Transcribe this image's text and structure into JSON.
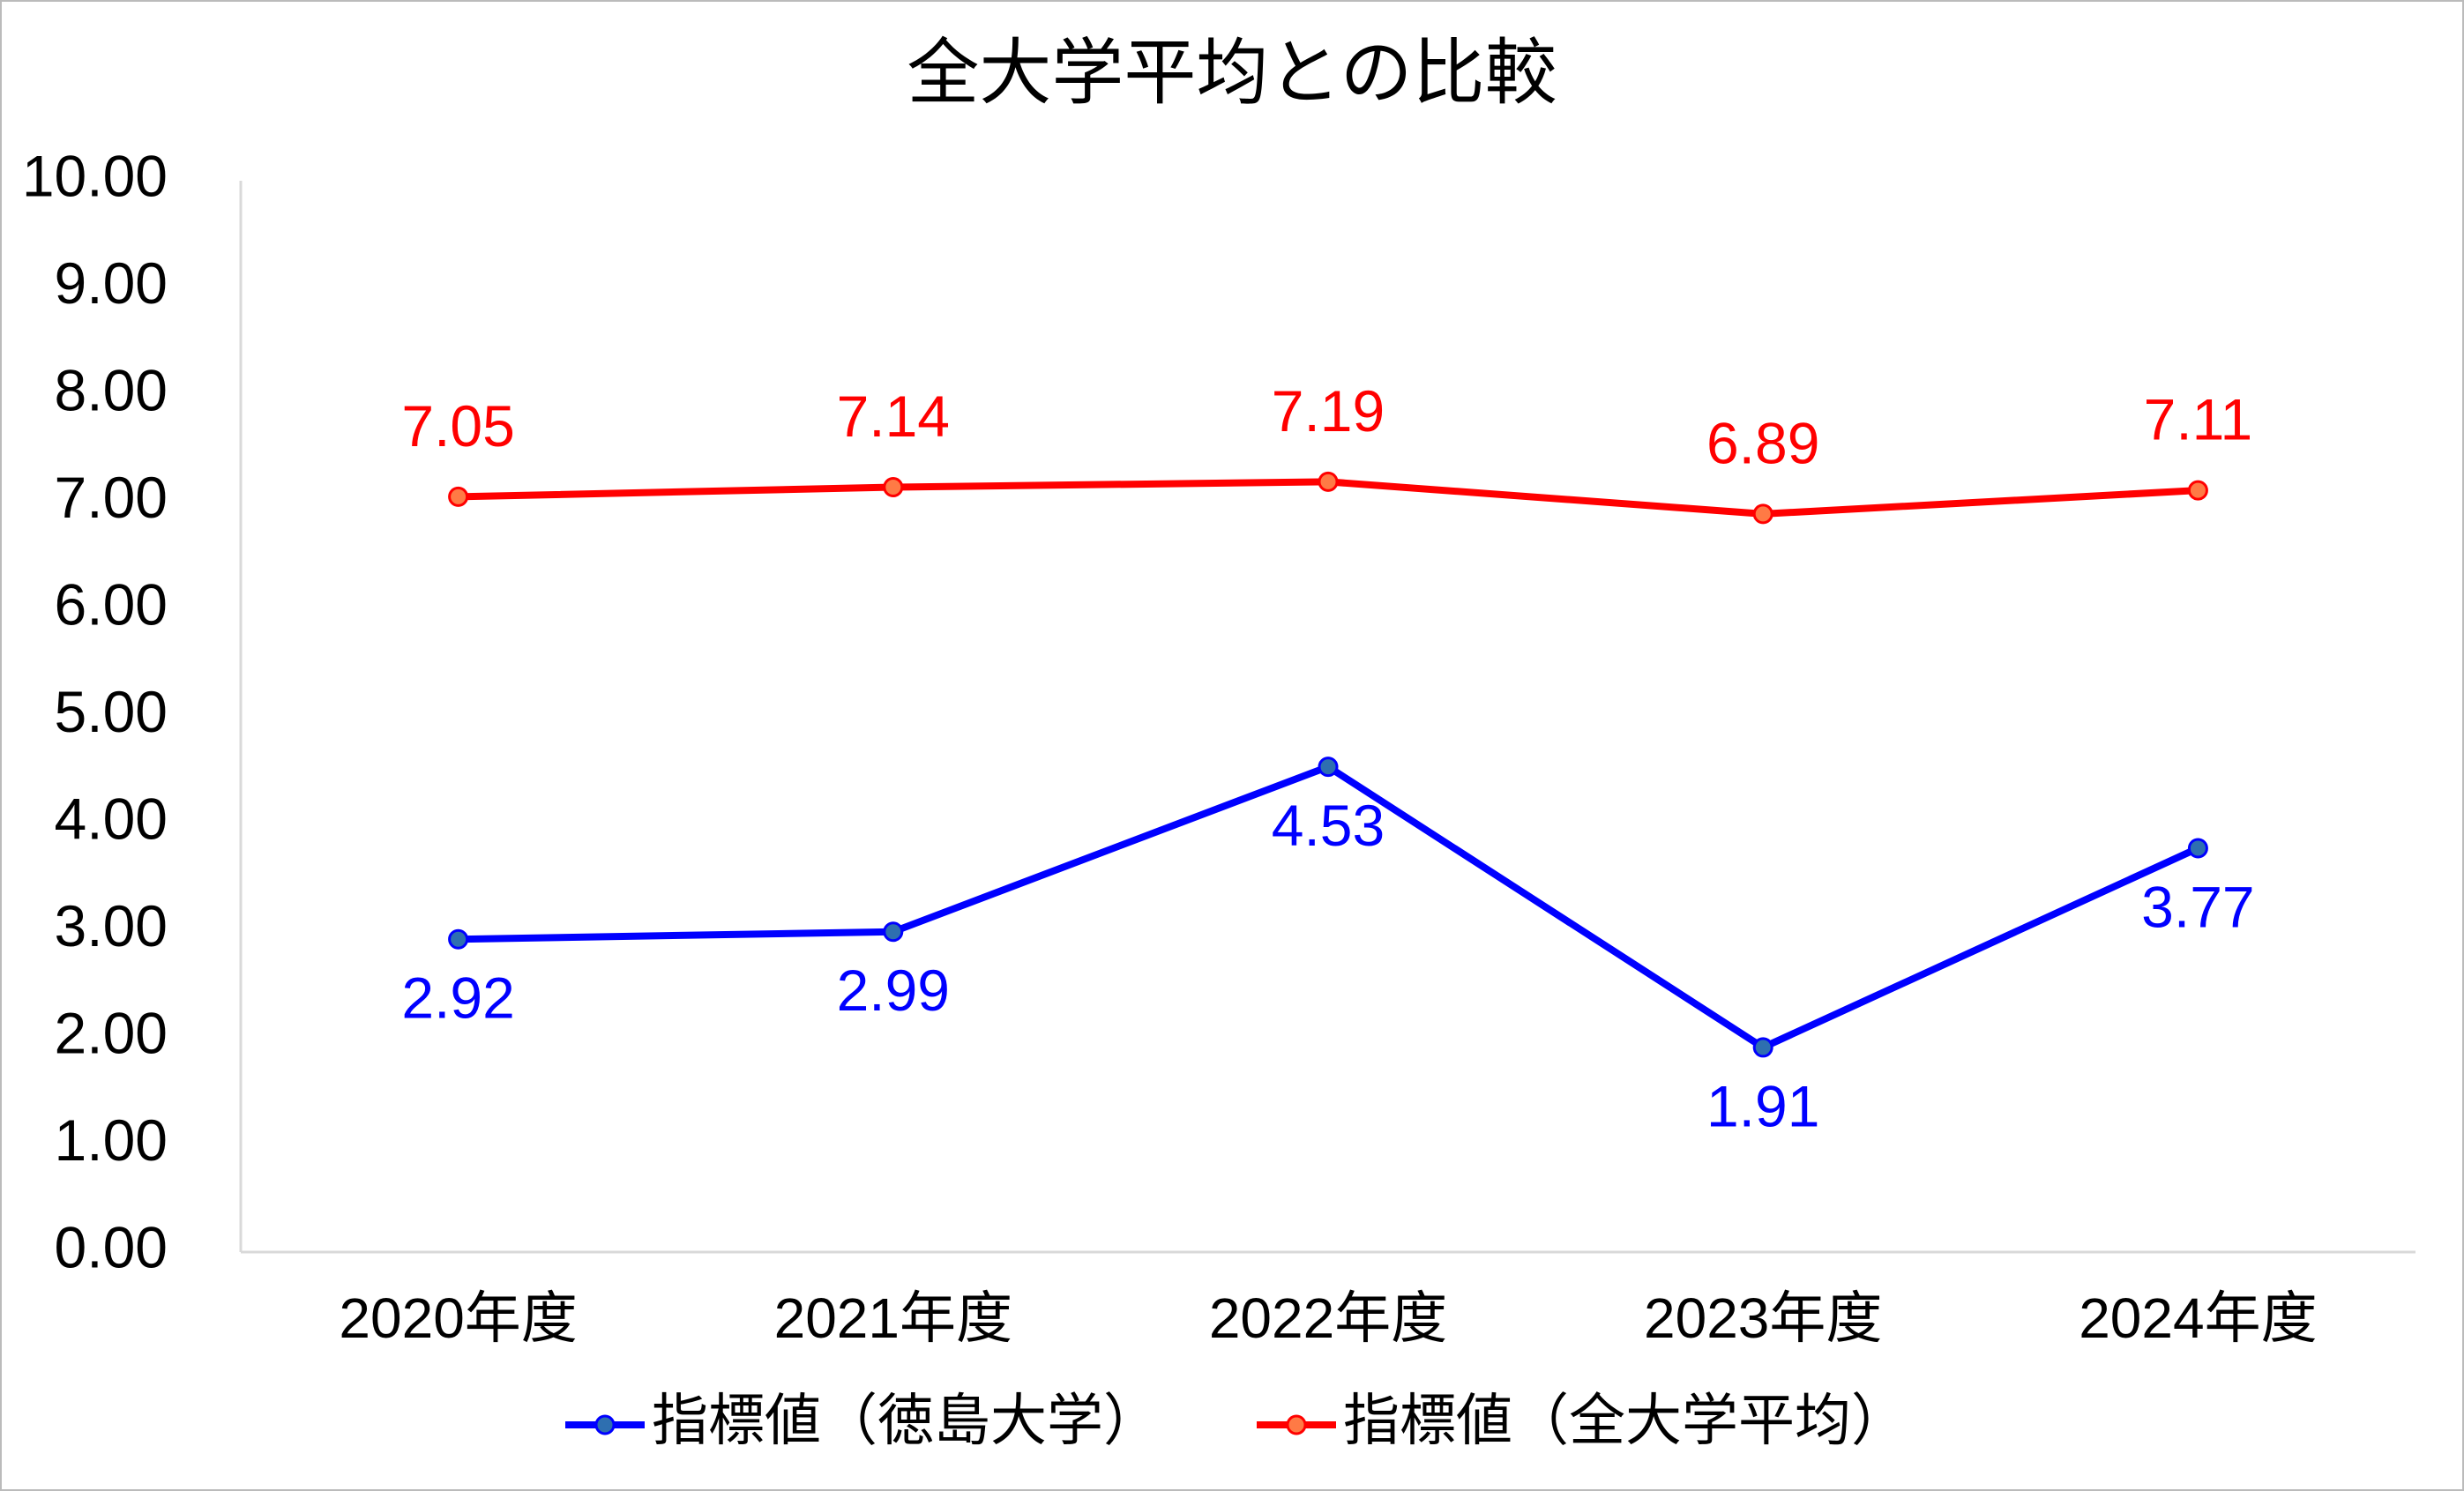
{
  "chart_data": {
    "type": "line",
    "title": "全大学平均との比較",
    "categories": [
      "2020年度",
      "2021年度",
      "2022年度",
      "2023年度",
      "2024年度"
    ],
    "series": [
      {
        "name": "指標値（徳島大学）",
        "color": "#0000ff",
        "marker_color": "#2e6fb0",
        "values": [
          2.92,
          2.99,
          4.53,
          1.91,
          3.77
        ]
      },
      {
        "name": "指標値（全大学平均）",
        "color": "#ff0000",
        "marker_color": "#ff7a45",
        "values": [
          7.05,
          7.14,
          7.19,
          6.89,
          7.11
        ]
      }
    ],
    "ylim": [
      0,
      10
    ],
    "yticks": [
      {
        "value": 0,
        "label": "0.00"
      },
      {
        "value": 1,
        "label": "1.00"
      },
      {
        "value": 2,
        "label": "2.00"
      },
      {
        "value": 3,
        "label": "3.00"
      },
      {
        "value": 4,
        "label": "4.00"
      },
      {
        "value": 5,
        "label": "5.00"
      },
      {
        "value": 6,
        "label": "6.00"
      },
      {
        "value": 7,
        "label": "7.00"
      },
      {
        "value": 8,
        "label": "8.00"
      },
      {
        "value": 9,
        "label": "9.00"
      },
      {
        "value": 10,
        "label": "10.00"
      }
    ],
    "grid": false,
    "legend": "bottom"
  }
}
